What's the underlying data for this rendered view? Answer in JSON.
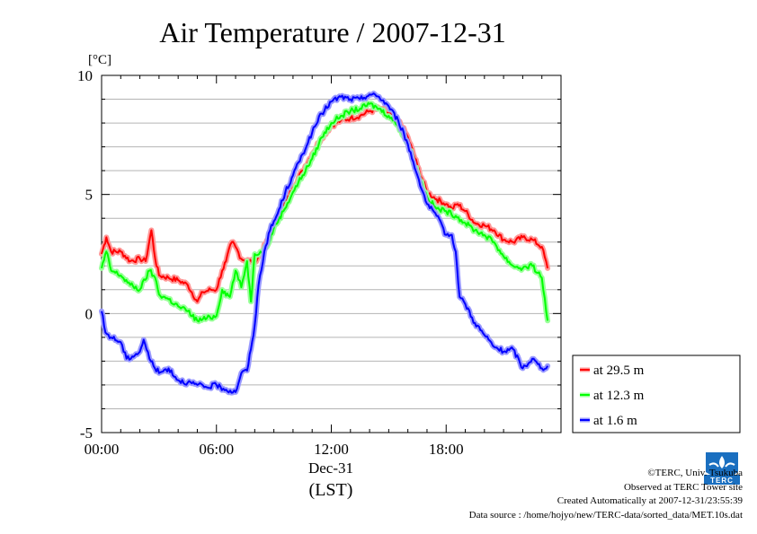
{
  "chart_data": {
    "type": "line",
    "title": "Air Temperature / 2007-12-31",
    "ylabel": "[°C]",
    "xlabel": "(LST)",
    "date_label": "Dec-31",
    "xlim": [
      0,
      24
    ],
    "ylim": [
      -5,
      10
    ],
    "x_ticks": [
      {
        "value": 0,
        "label": "00:00"
      },
      {
        "value": 6,
        "label": "06:00"
      },
      {
        "value": 12,
        "label": "12:00"
      },
      {
        "value": 18,
        "label": "18:00"
      }
    ],
    "y_ticks": [
      {
        "value": -5,
        "label": "-5"
      },
      {
        "value": 0,
        "label": "0"
      },
      {
        "value": 5,
        "label": "5"
      },
      {
        "value": 10,
        "label": "10"
      }
    ],
    "grid": true,
    "legend_position": "right",
    "series": [
      {
        "name": "at 29.5 m",
        "color": "#ff0000",
        "halo": "#ff9999",
        "x": [
          0,
          0.25,
          0.5,
          1,
          1.5,
          2,
          2.3,
          2.6,
          2.8,
          3,
          3.5,
          4,
          4.5,
          5,
          5.3,
          5.7,
          6,
          6.3,
          6.5,
          6.8,
          7,
          7.3,
          7.7,
          8,
          8.3,
          8.7,
          9,
          9.5,
          10,
          10.5,
          11,
          11.5,
          12,
          12.5,
          13,
          13.5,
          14,
          14.5,
          15,
          15.5,
          16,
          16.5,
          17,
          17.5,
          18,
          18.3,
          18.6,
          19,
          19.5,
          20,
          20.5,
          21,
          21.5,
          22,
          22.5,
          23,
          23.3
        ],
        "y": [
          2.5,
          3.2,
          2.6,
          2.6,
          2.2,
          2.3,
          2.2,
          3.5,
          2.3,
          1.6,
          1.5,
          1.4,
          1.2,
          0.5,
          0.9,
          1.0,
          1.0,
          1.8,
          2.2,
          3.0,
          2.8,
          2.3,
          2.2,
          2.2,
          2.5,
          3.1,
          3.8,
          4.5,
          5.3,
          6.0,
          6.7,
          7.4,
          7.9,
          8.1,
          8.2,
          8.3,
          8.5,
          8.6,
          8.4,
          8.1,
          7.4,
          6.2,
          5.1,
          4.8,
          4.6,
          4.4,
          4.6,
          4.3,
          3.8,
          3.7,
          3.5,
          3.1,
          3.0,
          3.2,
          3.1,
          2.8,
          1.9
        ]
      },
      {
        "name": "at 12.3 m",
        "color": "#00ff00",
        "halo": "#99ff99",
        "x": [
          0,
          0.25,
          0.5,
          1,
          1.5,
          2,
          2.5,
          2.8,
          3,
          3.5,
          4,
          4.5,
          5,
          5.5,
          6,
          6.3,
          6.7,
          7,
          7.3,
          7.6,
          7.8,
          8,
          8.3,
          8.7,
          9,
          9.5,
          10,
          10.5,
          11,
          11.5,
          12,
          12.5,
          13,
          13.5,
          14,
          14.5,
          15,
          15.5,
          16,
          16.5,
          17,
          17.5,
          18,
          18.5,
          19,
          19.5,
          20,
          20.5,
          21,
          21.5,
          22,
          22.5,
          23,
          23.3
        ],
        "y": [
          1.9,
          2.6,
          1.8,
          1.6,
          1.2,
          1.0,
          1.8,
          1.5,
          0.8,
          0.6,
          0.3,
          0.1,
          -0.3,
          -0.2,
          -0.1,
          1.0,
          0.7,
          1.8,
          1.1,
          2.2,
          0.5,
          2.5,
          2.6,
          2.9,
          3.6,
          4.3,
          5.1,
          5.8,
          6.5,
          7.4,
          8.0,
          8.3,
          8.5,
          8.6,
          8.8,
          8.6,
          8.3,
          7.9,
          7.1,
          5.9,
          4.9,
          4.4,
          4.3,
          4.1,
          3.8,
          3.5,
          3.3,
          3.0,
          2.4,
          2.0,
          1.9,
          2.0,
          1.5,
          -0.3
        ]
      },
      {
        "name": "at 1.6 m",
        "color": "#0000ff",
        "halo": "#9999ff",
        "x": [
          0,
          0.2,
          0.5,
          1,
          1.3,
          1.6,
          2,
          2.2,
          2.5,
          3,
          3.5,
          4,
          4.5,
          5,
          5.5,
          6,
          6.5,
          7,
          7.3,
          7.6,
          7.8,
          8,
          8.2,
          8.5,
          8.8,
          9.2,
          9.6,
          10,
          10.5,
          11,
          11.5,
          12,
          12.5,
          13,
          13.5,
          14,
          14.5,
          15,
          15.5,
          16,
          16.5,
          17,
          17.5,
          18,
          18.3,
          18.5,
          18.7,
          19,
          19.5,
          20,
          20.5,
          21,
          21.5,
          22,
          22.5,
          23,
          23.3
        ],
        "y": [
          0.1,
          -0.8,
          -1.0,
          -1.2,
          -1.9,
          -1.8,
          -1.6,
          -1.1,
          -1.9,
          -2.5,
          -2.3,
          -2.8,
          -2.9,
          -3.0,
          -3.1,
          -3.0,
          -3.2,
          -3.3,
          -2.5,
          -2.4,
          -1.5,
          -0.5,
          1.2,
          2.6,
          3.5,
          4.2,
          5.1,
          5.8,
          6.7,
          7.6,
          8.4,
          8.9,
          9.1,
          9.0,
          9.0,
          9.2,
          9.1,
          8.7,
          8.1,
          7.1,
          5.8,
          4.6,
          4.1,
          3.3,
          3.3,
          2.6,
          0.7,
          0.4,
          -0.4,
          -0.9,
          -1.4,
          -1.6,
          -1.5,
          -2.3,
          -1.9,
          -2.3,
          -2.2
        ]
      }
    ]
  },
  "footer": {
    "copyright": "©TERC, Univ. Tsukuba",
    "observed": "Observed at TERC Tower site",
    "created": "Created Automatically at 2007-12-31/23:55:39",
    "source": "Data source : /home/hojyo/new/TERC-data/sorted_data/MET.10s.dat",
    "logo_text": "TERC"
  }
}
